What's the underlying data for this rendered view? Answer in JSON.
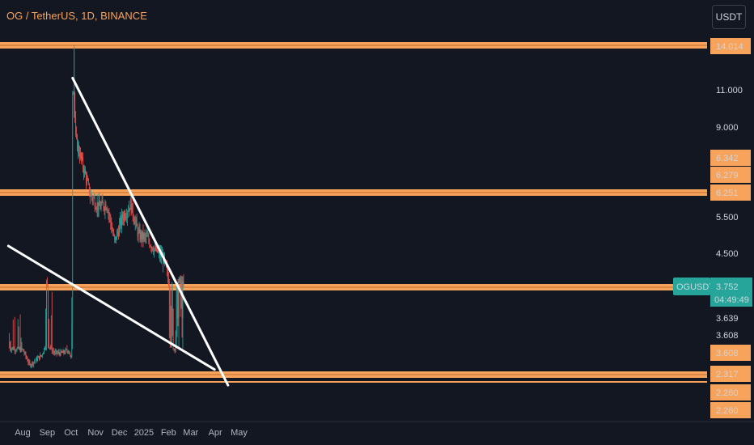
{
  "header": {
    "title": "OG / TetherUS, 1D, BINANCE",
    "currency_button": "USDT"
  },
  "colors": {
    "background": "#131722",
    "level_line": "#f7a35c",
    "trendline": "#ffffff",
    "candle_up": "#26a69a",
    "candle_down": "#ef5350",
    "price_label_bg": "#26a69a"
  },
  "chart_data": {
    "type": "candlestick",
    "symbol": "OGUSDT",
    "timeframe": "1D",
    "exchange": "BINANCE",
    "x_ticks": [
      "Aug",
      "Sep",
      "Oct",
      "Nov",
      "Dec",
      "2025",
      "Feb",
      "Mar",
      "Apr",
      "May"
    ],
    "y_ticks": [
      "11.000",
      "9.000",
      "5.500",
      "4.500",
      "3.639",
      "3.608"
    ],
    "horizontal_levels": [
      {
        "price": 14.014,
        "label": "14.014"
      },
      {
        "price": 6.251,
        "label": "6.251"
      },
      {
        "price": 3.752,
        "label": "3.752"
      },
      {
        "price": 2.317,
        "label": "2.317"
      }
    ],
    "level_labels": [
      "14.014",
      "6.342",
      "6.279",
      "6.251",
      "3.608",
      "2.317",
      "2.260",
      "2.260"
    ],
    "current_price": {
      "symbol": "OGUSDT",
      "price": "3.752",
      "countdown": "04:49:49"
    },
    "trendlines": [
      {
        "name": "descending-resistance",
        "from": {
          "date": "2024-10-03",
          "price": 11.8
        },
        "to": {
          "date": "2025-04-17",
          "price": 2.3
        }
      },
      {
        "name": "descending-support",
        "from": {
          "date": "2024-07-14",
          "price": 4.7
        },
        "to": {
          "date": "2025-03-31",
          "price": 2.55
        }
      }
    ],
    "price_path": [
      {
        "date": "2024-07-15",
        "price": 3.55
      },
      {
        "date": "2024-08-01",
        "price": 3.45
      },
      {
        "date": "2024-08-10",
        "price": 2.75
      },
      {
        "date": "2024-08-25",
        "price": 3.2
      },
      {
        "date": "2024-08-31",
        "price": 3.8
      },
      {
        "date": "2024-09-10",
        "price": 3.3
      },
      {
        "date": "2024-09-20",
        "price": 3.3
      },
      {
        "date": "2024-09-28",
        "price": 3.45
      },
      {
        "date": "2024-10-01",
        "price": 3.0
      },
      {
        "date": "2024-10-04",
        "price": 5.2
      },
      {
        "date": "2024-10-05",
        "price": 10.5
      },
      {
        "date": "2024-10-07",
        "price": 8.5
      },
      {
        "date": "2024-10-15",
        "price": 7.5
      },
      {
        "date": "2024-10-25",
        "price": 6.2
      },
      {
        "date": "2024-11-05",
        "price": 5.8
      },
      {
        "date": "2024-11-15",
        "price": 5.9
      },
      {
        "date": "2024-11-25",
        "price": 4.8
      },
      {
        "date": "2024-12-05",
        "price": 5.5
      },
      {
        "date": "2024-12-15",
        "price": 5.9
      },
      {
        "date": "2024-12-25",
        "price": 5.0
      },
      {
        "date": "2025-01-05",
        "price": 4.9
      },
      {
        "date": "2025-01-15",
        "price": 4.6
      },
      {
        "date": "2025-01-25",
        "price": 4.4
      },
      {
        "date": "2025-02-01",
        "price": 3.9
      },
      {
        "date": "2025-02-08",
        "price": 3.5
      },
      {
        "date": "2025-02-14",
        "price": 3.85
      },
      {
        "date": "2025-02-20",
        "price": 3.75
      }
    ]
  }
}
